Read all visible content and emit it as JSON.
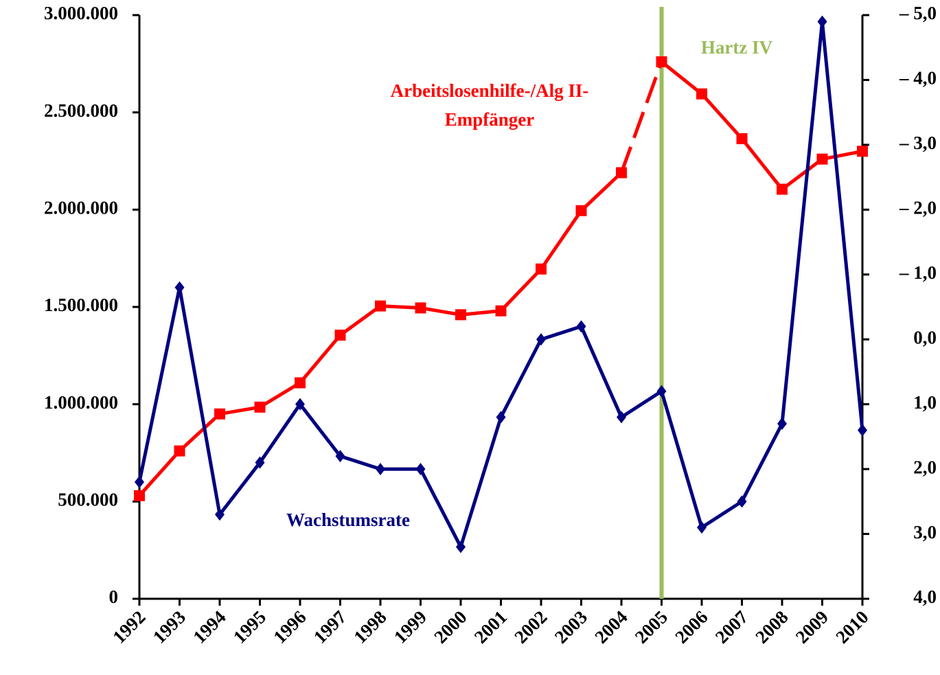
{
  "chart_data": {
    "type": "line",
    "categories": [
      "1992",
      "1993",
      "1994",
      "1995",
      "1996",
      "1997",
      "1998",
      "1999",
      "2000",
      "2001",
      "2002",
      "2003",
      "2004",
      "2005",
      "2006",
      "2007",
      "2008",
      "2009",
      "2010"
    ],
    "series": [
      {
        "name": "Arbeitslosenhilfe-/Alg II-Empfänger",
        "label_lines": [
          "Arbeitslosenhilfe-/Alg II-",
          "Empfänger"
        ],
        "color": "#ff0000",
        "marker": "square",
        "axis": "y",
        "dashed_between": [
          "2004",
          "2005"
        ],
        "values": [
          530000,
          760000,
          950000,
          985000,
          1110000,
          1355000,
          1505000,
          1495000,
          1460000,
          1480000,
          1695000,
          1995000,
          2190000,
          2760000,
          2595000,
          2365000,
          2105000,
          2260000,
          2300000
        ]
      },
      {
        "name": "Wachstumsrate",
        "color": "#000080",
        "marker": "diamond",
        "axis": "y2",
        "values": [
          2.2,
          -0.8,
          2.7,
          1.9,
          1.0,
          1.8,
          2.0,
          2.0,
          3.2,
          1.2,
          0.0,
          -0.2,
          1.2,
          0.8,
          2.9,
          2.5,
          1.3,
          -4.9,
          1.4
        ]
      }
    ],
    "ylim": [
      0,
      3000000
    ],
    "yticks": [
      {
        "value": 0,
        "label": "0"
      },
      {
        "value": 500000,
        "label": "500.000"
      },
      {
        "value": 1000000,
        "label": "1.000.000"
      },
      {
        "value": 1500000,
        "label": "1.500.000"
      },
      {
        "value": 2000000,
        "label": "2.000.000"
      },
      {
        "value": 2500000,
        "label": "2.500.000"
      },
      {
        "value": 3000000,
        "label": "3.000.000"
      }
    ],
    "y2lim": [
      4,
      -5
    ],
    "y2ticks": [
      {
        "value": -5,
        "label": "– 5,0"
      },
      {
        "value": -4,
        "label": "– 4,0"
      },
      {
        "value": -3,
        "label": "– 3,0"
      },
      {
        "value": -2,
        "label": "– 2,0"
      },
      {
        "value": -1,
        "label": "– 1,0"
      },
      {
        "value": 0,
        "label": "0,0"
      },
      {
        "value": 1,
        "label": "1,0"
      },
      {
        "value": 2,
        "label": "2,0"
      },
      {
        "value": 3,
        "label": "3,0"
      },
      {
        "value": 4,
        "label": "4,0"
      }
    ],
    "annotations": [
      {
        "text": "Hartz IV",
        "x": "2005",
        "color": "#9bbb59"
      }
    ]
  }
}
